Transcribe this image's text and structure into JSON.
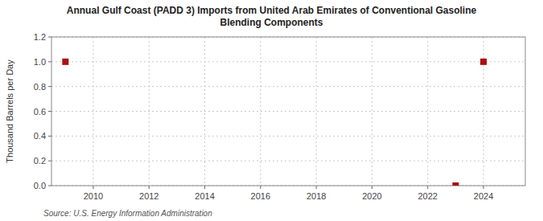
{
  "chart_data": {
    "type": "scatter",
    "title": "Annual Gulf Coast (PADD 3) Imports from United Arab Emirates of Conventional Gasoline\nBlending Components",
    "y_label": "Thousand Barrels per Day",
    "annotations": [
      "Source: U.S. Energy Information Administration"
    ],
    "x": [
      2009,
      2023,
      2024
    ],
    "values": [
      1.0,
      0.0,
      1.0
    ],
    "color": "#aa1111",
    "marker": "square",
    "xlim": [
      2008.5,
      2025.5
    ],
    "xticks": [
      2010,
      2012,
      2014,
      2016,
      2018,
      2020,
      2022,
      2024
    ],
    "ylim": [
      0.0,
      1.2
    ],
    "yticks": [
      {
        "value": 0.0,
        "label": "0.0"
      },
      0.2,
      0.4,
      0.6,
      0.8,
      {
        "value": 1.0,
        "label": "1.0"
      },
      1.2
    ],
    "grid": true
  }
}
